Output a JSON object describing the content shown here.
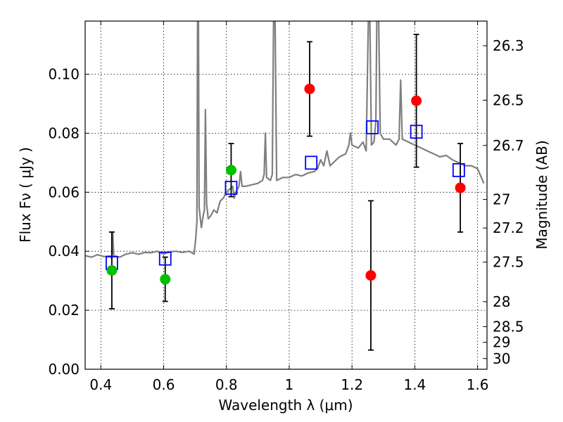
{
  "chart_data": {
    "type": "scatter",
    "xlabel": "Wavelength  λ (μm)",
    "ylabel": "Flux  Fν  ( μJy )",
    "y2label": "Magnitude (AB)",
    "xlim": [
      0.35,
      1.63
    ],
    "ylim": [
      0.0,
      0.118
    ],
    "grid": true,
    "x_ticks": [
      0.4,
      0.6,
      0.8,
      1.0,
      1.2,
      1.4,
      1.6
    ],
    "x_tick_labels": [
      "0.4",
      "0.6",
      "0.8",
      "1",
      "1.2",
      "1.4",
      "1.6"
    ],
    "y_ticks": [
      0.0,
      0.02,
      0.04,
      0.06,
      0.08,
      0.1
    ],
    "y_tick_labels": [
      "0.00",
      "0.02",
      "0.04",
      "0.06",
      "0.08",
      "0.10"
    ],
    "mag_ticks": [
      26.3,
      26.5,
      26.7,
      27,
      27.2,
      27.5,
      28,
      28.5,
      29,
      30
    ],
    "mag_tick_labels": [
      "26.3",
      "26.5",
      "26.7",
      "27",
      "27.2",
      "27.5",
      "28",
      "28.5",
      "29",
      "30"
    ],
    "colors": {
      "spectrum": "#7f7f7f",
      "model": "#0000ff",
      "optical": "#00c000",
      "nir": "#ff0000",
      "errorbar": "#000000"
    },
    "spectrum": [
      [
        0.35,
        0.0385
      ],
      [
        0.37,
        0.038
      ],
      [
        0.39,
        0.0388
      ],
      [
        0.41,
        0.0382
      ],
      [
        0.43,
        0.0384
      ],
      [
        0.435,
        0.0375
      ],
      [
        0.438,
        0.046
      ],
      [
        0.441,
        0.0385
      ],
      [
        0.46,
        0.038
      ],
      [
        0.48,
        0.039
      ],
      [
        0.5,
        0.0395
      ],
      [
        0.52,
        0.039
      ],
      [
        0.54,
        0.0396
      ],
      [
        0.56,
        0.0395
      ],
      [
        0.58,
        0.04
      ],
      [
        0.6,
        0.039
      ],
      [
        0.62,
        0.0398
      ],
      [
        0.64,
        0.04
      ],
      [
        0.66,
        0.0396
      ],
      [
        0.68,
        0.04
      ],
      [
        0.69,
        0.0395
      ],
      [
        0.697,
        0.039
      ],
      [
        0.702,
        0.044
      ],
      [
        0.706,
        0.05
      ],
      [
        0.708,
        0.118
      ],
      [
        0.711,
        0.118
      ],
      [
        0.713,
        0.055
      ],
      [
        0.72,
        0.048
      ],
      [
        0.726,
        0.052
      ],
      [
        0.73,
        0.054
      ],
      [
        0.733,
        0.088
      ],
      [
        0.737,
        0.056
      ],
      [
        0.742,
        0.051
      ],
      [
        0.75,
        0.052
      ],
      [
        0.76,
        0.054
      ],
      [
        0.77,
        0.053
      ],
      [
        0.78,
        0.057
      ],
      [
        0.79,
        0.058
      ],
      [
        0.8,
        0.06
      ],
      [
        0.81,
        0.061
      ],
      [
        0.82,
        0.062
      ],
      [
        0.825,
        0.058
      ],
      [
        0.83,
        0.06
      ],
      [
        0.84,
        0.062
      ],
      [
        0.845,
        0.067
      ],
      [
        0.85,
        0.062
      ],
      [
        0.86,
        0.062
      ],
      [
        0.88,
        0.0625
      ],
      [
        0.9,
        0.063
      ],
      [
        0.915,
        0.064
      ],
      [
        0.92,
        0.066
      ],
      [
        0.924,
        0.08
      ],
      [
        0.928,
        0.065
      ],
      [
        0.94,
        0.064
      ],
      [
        0.946,
        0.066
      ],
      [
        0.95,
        0.118
      ],
      [
        0.955,
        0.118
      ],
      [
        0.96,
        0.064
      ],
      [
        0.98,
        0.065
      ],
      [
        1.0,
        0.065
      ],
      [
        1.02,
        0.066
      ],
      [
        1.04,
        0.0655
      ],
      [
        1.06,
        0.0665
      ],
      [
        1.08,
        0.067
      ],
      [
        1.09,
        0.068
      ],
      [
        1.1,
        0.071
      ],
      [
        1.11,
        0.069
      ],
      [
        1.12,
        0.074
      ],
      [
        1.13,
        0.069
      ],
      [
        1.14,
        0.07
      ],
      [
        1.16,
        0.072
      ],
      [
        1.18,
        0.073
      ],
      [
        1.19,
        0.076
      ],
      [
        1.195,
        0.08
      ],
      [
        1.2,
        0.076
      ],
      [
        1.22,
        0.075
      ],
      [
        1.235,
        0.077
      ],
      [
        1.245,
        0.074
      ],
      [
        1.252,
        0.118
      ],
      [
        1.257,
        0.118
      ],
      [
        1.262,
        0.076
      ],
      [
        1.27,
        0.077
      ],
      [
        1.276,
        0.084
      ],
      [
        1.279,
        0.118
      ],
      [
        1.285,
        0.118
      ],
      [
        1.29,
        0.08
      ],
      [
        1.3,
        0.078
      ],
      [
        1.32,
        0.078
      ],
      [
        1.34,
        0.076
      ],
      [
        1.35,
        0.078
      ],
      [
        1.355,
        0.098
      ],
      [
        1.36,
        0.078
      ],
      [
        1.38,
        0.077
      ],
      [
        1.4,
        0.076
      ],
      [
        1.42,
        0.075
      ],
      [
        1.44,
        0.074
      ],
      [
        1.46,
        0.073
      ],
      [
        1.48,
        0.072
      ],
      [
        1.5,
        0.0725
      ],
      [
        1.52,
        0.071
      ],
      [
        1.54,
        0.07
      ],
      [
        1.56,
        0.069
      ],
      [
        1.58,
        0.069
      ],
      [
        1.6,
        0.068
      ],
      [
        1.62,
        0.063
      ]
    ],
    "model_points": [
      {
        "x": 0.435,
        "y": 0.036
      },
      {
        "x": 0.605,
        "y": 0.0375
      },
      {
        "x": 0.815,
        "y": 0.0615
      },
      {
        "x": 1.07,
        "y": 0.07
      },
      {
        "x": 1.265,
        "y": 0.082
      },
      {
        "x": 1.405,
        "y": 0.0805
      },
      {
        "x": 1.54,
        "y": 0.0675
      }
    ],
    "observed_optical": [
      {
        "x": 0.435,
        "y": 0.0335,
        "yerr": 0.013
      },
      {
        "x": 0.605,
        "y": 0.0305,
        "yerr": 0.0075
      },
      {
        "x": 0.815,
        "y": 0.0675,
        "yerr": 0.009
      }
    ],
    "observed_nir": [
      {
        "x": 1.065,
        "y": 0.095,
        "yerr": 0.016
      },
      {
        "x": 1.26,
        "y": 0.0318,
        "yerr": 0.0253
      },
      {
        "x": 1.405,
        "y": 0.091,
        "yerr": 0.0225
      },
      {
        "x": 1.545,
        "y": 0.0615,
        "yerr": 0.015
      }
    ]
  }
}
